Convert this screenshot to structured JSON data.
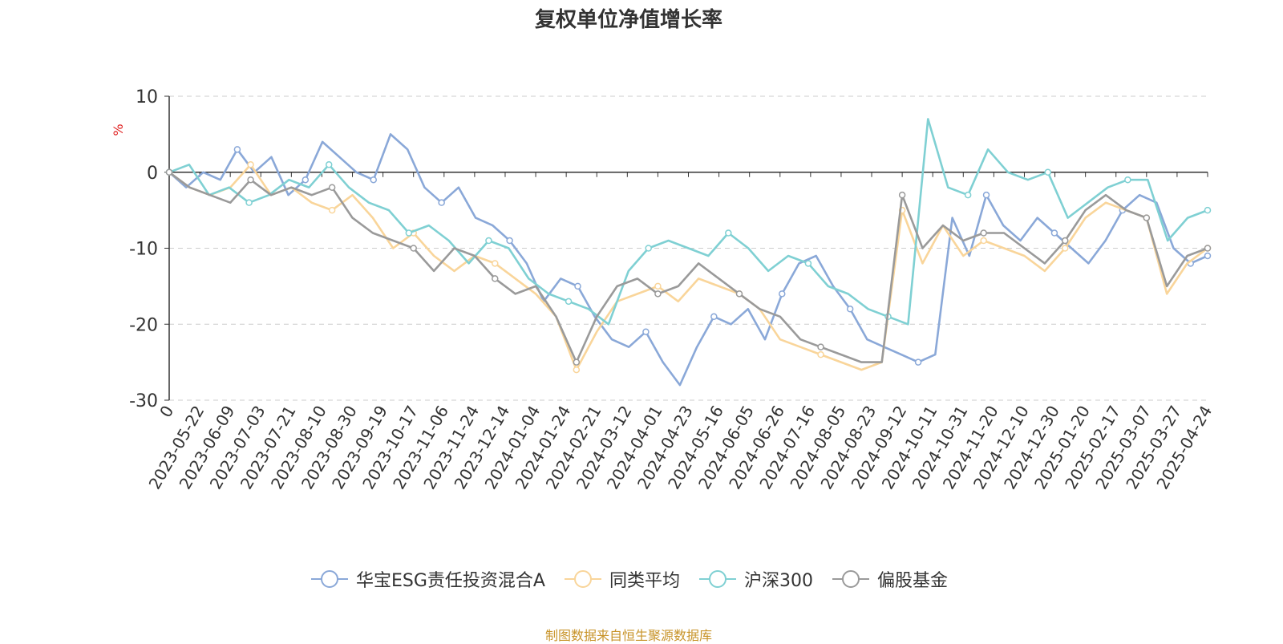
{
  "chart_data": {
    "type": "line",
    "title": "复权单位净值增长率",
    "ylabel": "%",
    "ylim": [
      -30,
      10
    ],
    "yticks": [
      10,
      0,
      -10,
      -20,
      -30
    ],
    "grid": true,
    "legend_position": "bottom",
    "xlabels": [
      "0",
      "2023-05-22",
      "2023-06-09",
      "2023-07-03",
      "2023-07-21",
      "2023-08-10",
      "2023-08-30",
      "2023-09-19",
      "2023-10-17",
      "2023-11-06",
      "2023-11-24",
      "2023-12-14",
      "2024-01-04",
      "2024-01-24",
      "2024-02-21",
      "2024-03-12",
      "2024-04-01",
      "2024-04-23",
      "2024-05-16",
      "2024-06-05",
      "2024-06-26",
      "2024-07-16",
      "2024-08-05",
      "2024-08-23",
      "2024-09-12",
      "2024-10-11",
      "2024-10-31",
      "2024-11-20",
      "2024-12-10",
      "2024-12-30",
      "2025-01-20",
      "2025-02-17",
      "2025-03-07",
      "2025-03-27",
      "2025-04-24"
    ],
    "series": [
      {
        "name": "华宝ESG责任投资混合A",
        "color": "#8aa8d8",
        "values": [
          0,
          -2,
          0,
          -1,
          3,
          0,
          2,
          -3,
          -1,
          4,
          2,
          0,
          -1,
          5,
          3,
          -2,
          -4,
          -2,
          -6,
          -7,
          -9,
          -12,
          -17,
          -14,
          -15,
          -19,
          -22,
          -23,
          -21,
          -25,
          -28,
          -23,
          -19,
          -20,
          -18,
          -22,
          -16,
          -12,
          -11,
          -15,
          -18,
          -22,
          -23,
          -24,
          -25,
          -24,
          -6,
          -11,
          -3,
          -7,
          -9,
          -6,
          -8,
          -10,
          -12,
          -9,
          -5,
          -3,
          -4,
          -10,
          -12,
          -11
        ]
      },
      {
        "name": "同类平均",
        "color": "#f9d59a",
        "values": [
          0,
          -2,
          -3,
          -2,
          1,
          -3,
          -2,
          -4,
          -5,
          -3,
          -6,
          -10,
          -8,
          -11,
          -13,
          -11,
          -12,
          -14,
          -16,
          -19,
          -26,
          -21,
          -17,
          -16,
          -15,
          -17,
          -14,
          -15,
          -16,
          -18,
          -22,
          -23,
          -24,
          -25,
          -26,
          -25,
          -5,
          -12,
          -7,
          -11,
          -9,
          -10,
          -11,
          -13,
          -10,
          -6,
          -4,
          -5,
          -6,
          -16,
          -12,
          -10
        ]
      },
      {
        "name": "沪深300",
        "color": "#7fd0d3",
        "values": [
          0,
          1,
          -3,
          -2,
          -4,
          -3,
          -1,
          -2,
          1,
          -2,
          -4,
          -5,
          -8,
          -7,
          -9,
          -12,
          -9,
          -10,
          -14,
          -16,
          -17,
          -18,
          -20,
          -13,
          -10,
          -9,
          -10,
          -11,
          -8,
          -10,
          -13,
          -11,
          -12,
          -15,
          -16,
          -18,
          -19,
          -20,
          7,
          -2,
          -3,
          3,
          0,
          -1,
          0,
          -6,
          -4,
          -2,
          -1,
          -1,
          -9,
          -6,
          -5
        ]
      },
      {
        "name": "偏股基金",
        "color": "#9a9a9a",
        "values": [
          0,
          -2,
          -3,
          -4,
          -1,
          -3,
          -2,
          -3,
          -2,
          -6,
          -8,
          -9,
          -10,
          -13,
          -10,
          -11,
          -14,
          -16,
          -15,
          -19,
          -25,
          -19,
          -15,
          -14,
          -16,
          -15,
          -12,
          -14,
          -16,
          -18,
          -19,
          -22,
          -23,
          -24,
          -25,
          -25,
          -3,
          -10,
          -7,
          -9,
          -8,
          -8,
          -10,
          -12,
          -9,
          -5,
          -3,
          -5,
          -6,
          -15,
          -11,
          -10
        ]
      }
    ]
  },
  "legend": {
    "items": [
      {
        "label": "华宝ESG责任投资混合A",
        "color": "#8aa8d8"
      },
      {
        "label": "同类平均",
        "color": "#f9d59a"
      },
      {
        "label": "沪深300",
        "color": "#7fd0d3"
      },
      {
        "label": "偏股基金",
        "color": "#9a9a9a"
      }
    ]
  },
  "source_note": "制图数据来自恒生聚源数据库"
}
